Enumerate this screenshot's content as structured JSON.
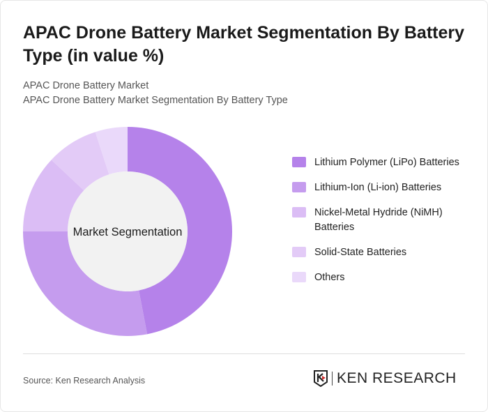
{
  "title": "APAC Drone Battery Market Segmentation By Battery Type (in value %)",
  "subtitle1": "APAC Drone Battery Market",
  "subtitle2": "APAC Drone Battery Market Segmentation By Battery Type",
  "source": "Source: Ken Research Analysis",
  "logo_text": "KEN RESEARCH",
  "chart_data": {
    "type": "pie",
    "donut": true,
    "center_label": "Market Segmentation",
    "legend_position": "right",
    "categories": [
      "Lithium Polymer (LiPo) Batteries",
      "Lithium-Ion (Li-ion) Batteries",
      "Nickel-Metal Hydride (NiMH) Batteries",
      "Solid-State Batteries",
      "Others"
    ],
    "values": [
      47,
      28,
      12,
      8,
      5
    ],
    "colors": [
      "#b582ea",
      "#c59cee",
      "#dbbdf5",
      "#e3cbf7",
      "#ead9fa"
    ]
  }
}
